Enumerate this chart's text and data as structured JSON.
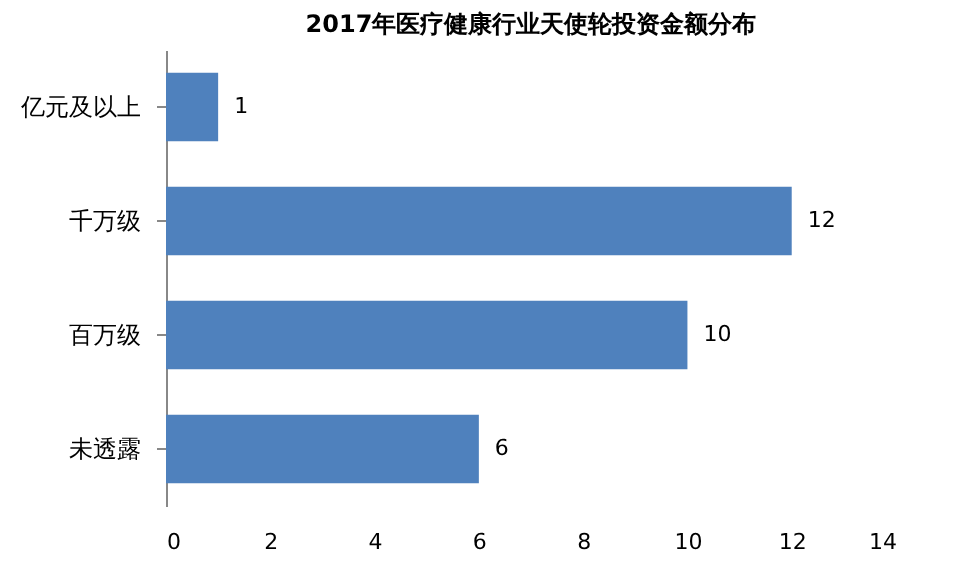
{
  "chart_data": {
    "type": "bar",
    "orientation": "horizontal",
    "title": "2017年医疗健康行业天使轮投资金额分布",
    "categories": [
      "亿元及以上",
      "千万级",
      "百万级",
      "未透露"
    ],
    "values": [
      1,
      12,
      10,
      6
    ],
    "color": "#4f81bd",
    "xlim": [
      0,
      14
    ],
    "xticks": [
      0,
      2,
      4,
      6,
      8,
      10,
      12,
      14
    ],
    "data_labels": true,
    "grid": false
  }
}
